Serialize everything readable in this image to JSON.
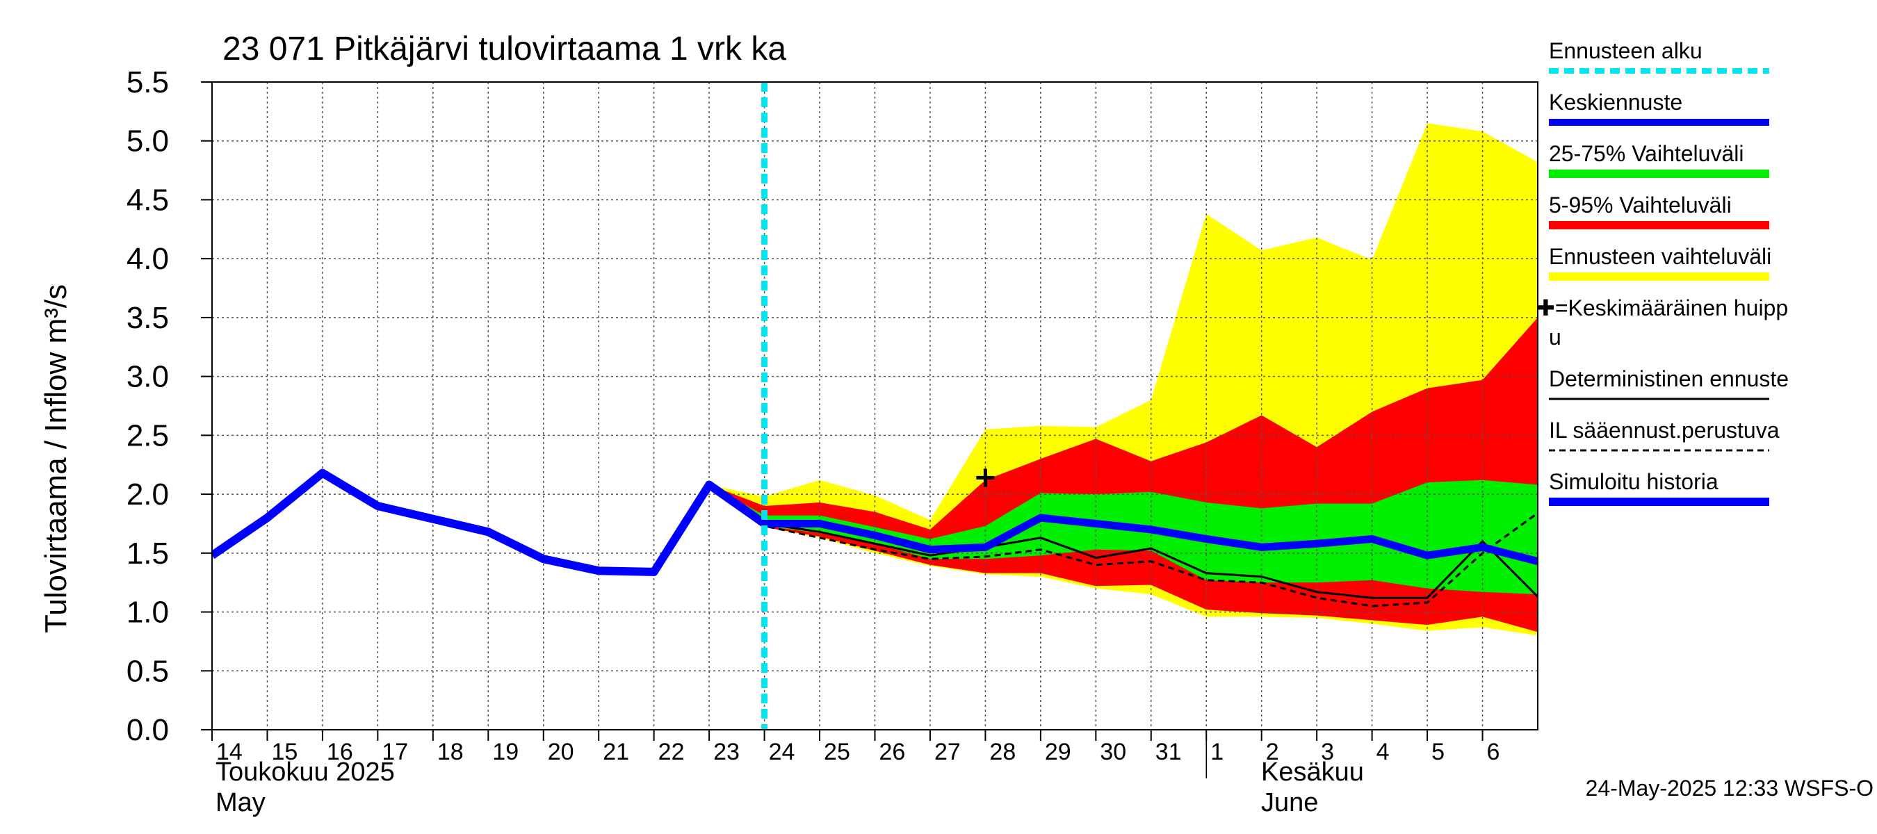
{
  "chart_data": {
    "type": "area",
    "title": "23 071 Pitkäjärvi tulovirtaama 1 vrk ka",
    "ylabel": "Tulovirtaama / Inflow    m³/s",
    "ylim": [
      0.0,
      5.5
    ],
    "yticks": [
      "0.0",
      "0.5",
      "1.0",
      "1.5",
      "2.0",
      "2.5",
      "3.0",
      "3.5",
      "4.0",
      "4.5",
      "5.0",
      "5.5"
    ],
    "x_range_days": [
      0,
      24
    ],
    "day_labels": [
      "14",
      "15",
      "16",
      "17",
      "18",
      "19",
      "20",
      "21",
      "22",
      "23",
      "24",
      "25",
      "26",
      "27",
      "28",
      "29",
      "30",
      "31",
      "1",
      "2",
      "3",
      "4",
      "5",
      "6"
    ],
    "month_labels": {
      "may_fi": "Toukokuu  2025",
      "may_en": "May",
      "june_fi": "Kesäkuu",
      "june_en": "June"
    },
    "forecast_start_day": 10,
    "series": [
      {
        "name": "Simuloitu historia",
        "x": [
          0,
          1,
          2,
          3,
          4,
          5,
          6,
          7,
          8,
          9,
          10
        ],
        "values": [
          1.48,
          1.8,
          2.18,
          1.9,
          1.79,
          1.68,
          1.45,
          1.35,
          1.34,
          2.08,
          1.75
        ]
      },
      {
        "name": "Keskiennuste",
        "x": [
          10,
          11,
          12,
          13,
          14,
          15,
          16,
          17,
          18,
          19,
          20,
          21,
          22,
          23,
          24
        ],
        "values": [
          1.75,
          1.75,
          1.65,
          1.53,
          1.55,
          1.8,
          1.75,
          1.7,
          1.62,
          1.55,
          1.58,
          1.62,
          1.48,
          1.55,
          1.43
        ]
      },
      {
        "name": "Deterministinen ennuste",
        "x": [
          9,
          10,
          11,
          12,
          13,
          14,
          15,
          16,
          17,
          18,
          19,
          20,
          21,
          22,
          23,
          24
        ],
        "values": [
          2.08,
          1.75,
          1.68,
          1.58,
          1.48,
          1.55,
          1.63,
          1.46,
          1.54,
          1.33,
          1.3,
          1.17,
          1.12,
          1.12,
          1.6,
          1.13
        ]
      },
      {
        "name": "IL sääennust.perustuva",
        "x": [
          9,
          10,
          11,
          12,
          13,
          14,
          15,
          16,
          17,
          18,
          19,
          20,
          21,
          22,
          23,
          24
        ],
        "values": [
          2.08,
          1.73,
          1.63,
          1.53,
          1.45,
          1.47,
          1.53,
          1.4,
          1.43,
          1.27,
          1.25,
          1.12,
          1.05,
          1.08,
          1.5,
          1.84
        ]
      }
    ],
    "bands": [
      {
        "name": "Ennusteen vaihteluväli",
        "color": "#ffff00",
        "x": [
          9,
          10,
          11,
          12,
          13,
          14,
          15,
          16,
          17,
          18,
          19,
          20,
          21,
          22,
          23,
          24
        ],
        "upper": [
          2.08,
          1.98,
          2.12,
          1.99,
          1.78,
          2.55,
          2.58,
          2.57,
          2.8,
          4.38,
          4.07,
          4.18,
          3.99,
          5.15,
          5.08,
          4.82
        ],
        "lower": [
          2.08,
          1.72,
          1.63,
          1.5,
          1.39,
          1.32,
          1.3,
          1.2,
          1.15,
          0.96,
          0.96,
          0.95,
          0.9,
          0.84,
          0.87,
          0.8
        ]
      },
      {
        "name": "5-95% Vaihteluväli",
        "color": "#ff0000",
        "x": [
          9,
          10,
          11,
          12,
          13,
          14,
          15,
          16,
          17,
          18,
          19,
          20,
          21,
          22,
          23,
          24
        ],
        "upper": [
          2.08,
          1.9,
          1.93,
          1.85,
          1.7,
          2.12,
          2.3,
          2.47,
          2.28,
          2.44,
          2.67,
          2.4,
          2.7,
          2.9,
          2.97,
          3.5
        ],
        "lower": [
          2.08,
          1.72,
          1.64,
          1.52,
          1.4,
          1.33,
          1.33,
          1.22,
          1.23,
          1.02,
          0.99,
          0.97,
          0.93,
          0.89,
          0.96,
          0.83
        ]
      },
      {
        "name": "25-75% Vaihteluväli",
        "color": "#00ee00",
        "x": [
          9,
          10,
          11,
          12,
          13,
          14,
          15,
          16,
          17,
          18,
          19,
          20,
          21,
          22,
          23,
          24
        ],
        "upper": [
          2.08,
          1.82,
          1.82,
          1.72,
          1.62,
          1.73,
          2.01,
          2.0,
          2.02,
          1.93,
          1.88,
          1.92,
          1.92,
          2.1,
          2.12,
          2.08
        ],
        "lower": [
          2.08,
          1.73,
          1.67,
          1.58,
          1.45,
          1.45,
          1.48,
          1.53,
          1.52,
          1.27,
          1.25,
          1.25,
          1.27,
          1.2,
          1.17,
          1.15
        ]
      }
    ],
    "peak_marker": {
      "name": "Keskimääräinen huippu",
      "x": 14,
      "y": 2.14
    },
    "legend": {
      "forecast_start": "Ennusteen alku",
      "mean": "Keskiennuste",
      "iqr": "25-75% Vaihteluväli",
      "p5_95": "5-95% Vaihteluväli",
      "range": "Ennusteen vaihteluväli",
      "peak_line1": "✚=Keskimääräinen huipp",
      "peak_line2": "u",
      "deterministic": "Deterministinen ennuste",
      "il_based": "IL sääennust.perustuva",
      "history": "Simuloitu historia"
    },
    "colors": {
      "history": "#0000ff",
      "forecast_start": "#00e5ee",
      "grid": "#555555",
      "yellow": "#ffff00",
      "red": "#ff0000",
      "green": "#00ee00"
    },
    "footer": "24-May-2025 12:33 WSFS-O"
  }
}
